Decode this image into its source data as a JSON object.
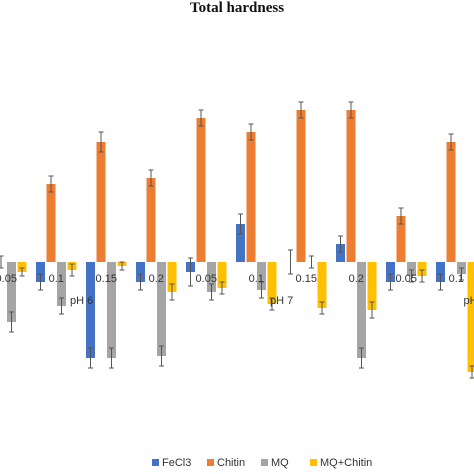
{
  "chart_data": {
    "type": "bar",
    "title": "Total hardness",
    "xlabel": "",
    "ylabel": "",
    "ylim": [
      -9.5,
      8.5
    ],
    "grid": false,
    "legend_position": "bottom",
    "categories": [
      "0.05",
      "0.1",
      "0.15",
      "0.2",
      "0.05",
      "0.1",
      "0.15",
      "0.2",
      "0.05",
      "0.1"
    ],
    "groups": [
      {
        "label": "pH 6",
        "categories": [
          "0.05",
          "0.1",
          "0.15",
          "0.2"
        ]
      },
      {
        "label": "pH 7",
        "categories": [
          "0.05",
          "0.1",
          "0.15",
          "0.2"
        ]
      },
      {
        "label": "pH",
        "categories": [
          "0.05",
          "0.1"
        ]
      }
    ],
    "series": [
      {
        "name": "FeCl3",
        "color": "#4472C4",
        "values": [
          -1.0,
          -1.0,
          -4.8,
          -1.0,
          -0.5,
          1.9,
          0.0,
          0.9,
          -1.0,
          -1.0
        ],
        "errors": [
          0.5,
          0.4,
          0.5,
          0.4,
          0.7,
          0.5,
          0.6,
          0.4,
          0.4,
          0.4
        ]
      },
      {
        "name": "Chitin",
        "color": "#ED7D31",
        "values": [
          0.0,
          3.9,
          6.0,
          4.2,
          7.2,
          6.5,
          7.6,
          7.6,
          2.3,
          6.0
        ],
        "errors": [
          0.3,
          0.4,
          0.5,
          0.4,
          0.4,
          0.4,
          0.4,
          0.4,
          0.4,
          0.4
        ]
      },
      {
        "name": "MQ",
        "color": "#A5A5A5",
        "values": [
          -3.0,
          -2.2,
          -4.8,
          -4.7,
          -1.5,
          -1.4,
          0.0,
          -4.8,
          -0.7,
          -0.6
        ],
        "errors": [
          0.5,
          0.4,
          0.5,
          0.5,
          0.4,
          0.4,
          0.3,
          0.5,
          0.3,
          0.3
        ]
      },
      {
        "name": "MQ+Chitin",
        "color": "#FFC000",
        "values": [
          -0.5,
          -0.4,
          -0.2,
          -1.5,
          -1.3,
          -2.1,
          -2.3,
          -2.4,
          -0.7,
          -5.5
        ],
        "errors": [
          0.2,
          0.3,
          0.2,
          0.4,
          0.3,
          0.3,
          0.3,
          0.4,
          0.3,
          0.3
        ]
      }
    ]
  }
}
